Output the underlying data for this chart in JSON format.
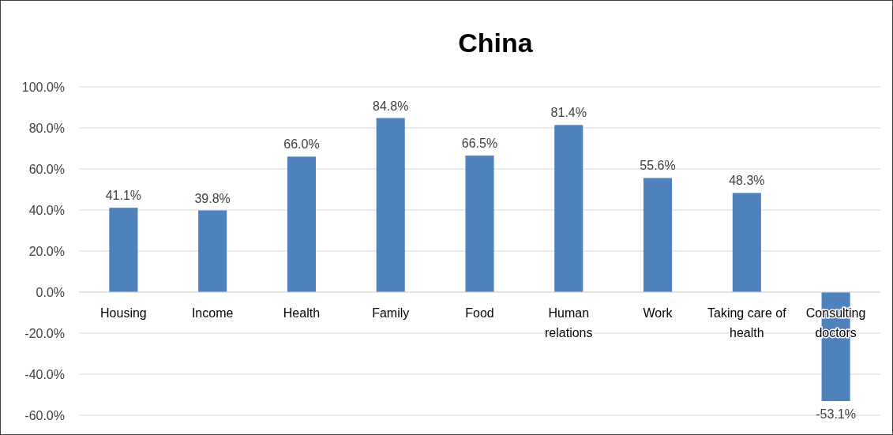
{
  "chart_data": {
    "type": "bar",
    "title": "China",
    "categories": [
      "Housing",
      "Income",
      "Health",
      "Family",
      "Food",
      "Human relations",
      "Work",
      "Taking care of health",
      "Consulting doctors"
    ],
    "values": [
      41.1,
      39.8,
      66.0,
      84.8,
      66.5,
      81.4,
      55.6,
      48.3,
      -53.1
    ],
    "value_labels": [
      "41.1%",
      "39.8%",
      "66.0%",
      "84.8%",
      "66.5%",
      "81.4%",
      "55.6%",
      "48.3%",
      "-53.1%"
    ],
    "color": "#4f81bd",
    "ylim": [
      -60,
      100
    ],
    "yticks": [
      {
        "value": -60,
        "label": "-60.0%"
      },
      {
        "value": -40,
        "label": "-40.0%"
      },
      {
        "value": -20,
        "label": "-20.0%"
      },
      {
        "value": 0,
        "label": "0.0%"
      },
      {
        "value": 20,
        "label": "20.0%"
      },
      {
        "value": 40,
        "label": "40.0%"
      },
      {
        "value": 60,
        "label": "60.0%"
      },
      {
        "value": 80,
        "label": "80.0%"
      },
      {
        "value": 100,
        "label": "100.0%"
      }
    ],
    "grid": "y"
  }
}
